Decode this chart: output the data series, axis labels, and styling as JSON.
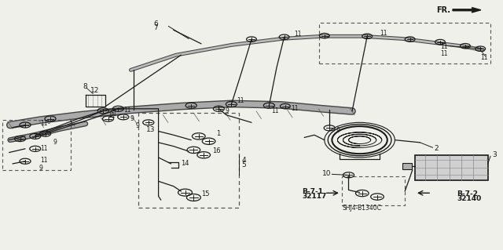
{
  "bg_color": "#f0f0eb",
  "line_color": "#1a1a1a",
  "harness_color": "#888888",
  "harness_dark": "#333333",
  "fr_text": "FR.",
  "shj_label": "SHJ4-B1340C",
  "b71_text": [
    "B-7-1",
    "32117"
  ],
  "b72_text": [
    "B-7-2",
    "32140"
  ],
  "main_harness": {
    "x": [
      0.02,
      0.08,
      0.16,
      0.26,
      0.36,
      0.46,
      0.56,
      0.64,
      0.7
    ],
    "y": [
      0.5,
      0.52,
      0.54,
      0.56,
      0.575,
      0.585,
      0.58,
      0.565,
      0.555
    ]
  },
  "upper_harness": {
    "x": [
      0.26,
      0.35,
      0.46,
      0.56,
      0.64,
      0.72,
      0.8,
      0.86,
      0.92,
      0.96
    ],
    "y": [
      0.72,
      0.78,
      0.82,
      0.845,
      0.855,
      0.855,
      0.845,
      0.83,
      0.815,
      0.8
    ]
  },
  "lower_harness": {
    "x": [
      0.02,
      0.07,
      0.12,
      0.17
    ],
    "y": [
      0.44,
      0.46,
      0.485,
      0.505
    ]
  }
}
